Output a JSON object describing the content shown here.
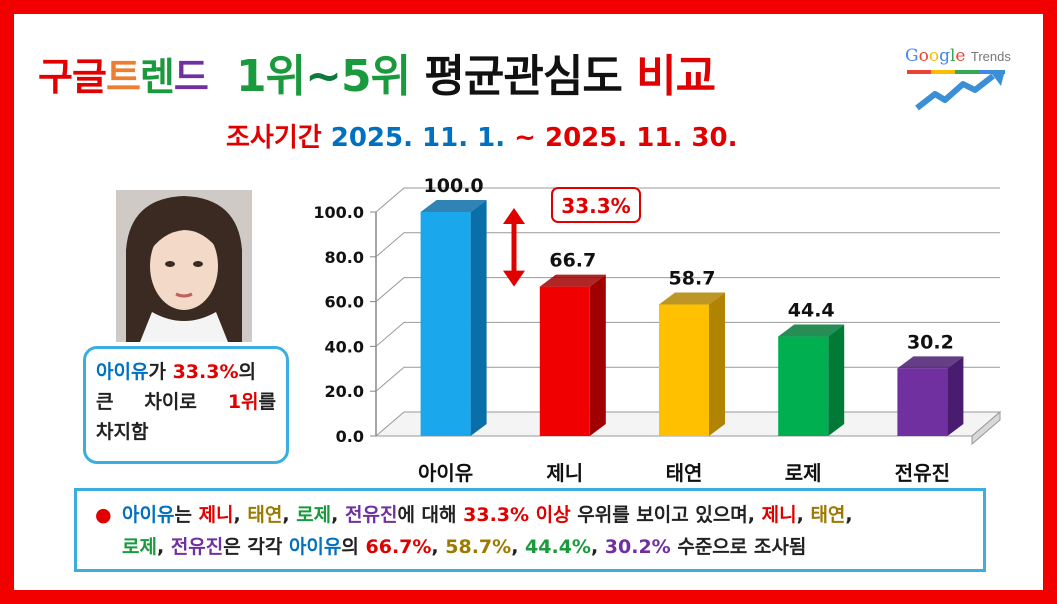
{
  "title_left": [
    "구",
    "글",
    "트",
    "렌",
    "드"
  ],
  "title_left_colors": [
    "#e00000",
    "#e00000",
    "#ed7d31",
    "#1a9a3c",
    "#7030a0"
  ],
  "title_main": {
    "a": "1위",
    "b": "~",
    "c": "5위",
    "d": " 평균관심도 ",
    "e": "비교"
  },
  "subtitle": {
    "label": "조사기간",
    "range_start": " 2025. 11. 1.",
    "range_sep": " ~ ",
    "range_end": "2025. 11. 30."
  },
  "logo": {
    "google": [
      "G",
      "o",
      "o",
      "g",
      "l",
      "e"
    ],
    "trends": "Trends"
  },
  "note": {
    "name": "아이유",
    "josa": "가 ",
    "pct": "33.3%",
    "tail": "의",
    "w1": "큰",
    "w2": "차이로",
    "rank": "1위",
    "w3": "를",
    "line3": "차지함"
  },
  "callout": "33.3%",
  "bottom": {
    "bullet": "●",
    "l1": [
      {
        "t": "아이유",
        "c": "#0070c0"
      },
      {
        "t": "는 ",
        "c": "#222"
      },
      {
        "t": "제니",
        "c": "#e00000"
      },
      {
        "t": ", ",
        "c": "#222"
      },
      {
        "t": "태연",
        "c": "#9c7a00"
      },
      {
        "t": ", ",
        "c": "#222"
      },
      {
        "t": "로제",
        "c": "#1a9a3c"
      },
      {
        "t": ", ",
        "c": "#222"
      },
      {
        "t": "전유진",
        "c": "#7030a0"
      },
      {
        "t": "에  대해 ",
        "c": "#222"
      },
      {
        "t": "33.3% 이상",
        "c": "#e00000"
      },
      {
        "t": " 우위를 보이고 있으며, ",
        "c": "#222"
      },
      {
        "t": "제니",
        "c": "#e00000"
      },
      {
        "t": ", ",
        "c": "#222"
      },
      {
        "t": "태연",
        "c": "#9c7a00"
      },
      {
        "t": ",",
        "c": "#222"
      }
    ],
    "l2": [
      {
        "t": "로제",
        "c": "#1a9a3c"
      },
      {
        "t": ", ",
        "c": "#222"
      },
      {
        "t": "전유진",
        "c": "#7030a0"
      },
      {
        "t": "은 각각 ",
        "c": "#222"
      },
      {
        "t": "아이유",
        "c": "#0070c0"
      },
      {
        "t": "의 ",
        "c": "#222"
      },
      {
        "t": "66.7%",
        "c": "#e00000"
      },
      {
        "t": ", ",
        "c": "#222"
      },
      {
        "t": "58.7%",
        "c": "#9c7a00"
      },
      {
        "t": ", ",
        "c": "#222"
      },
      {
        "t": "44.4%",
        "c": "#1a9a3c"
      },
      {
        "t": ", ",
        "c": "#222"
      },
      {
        "t": "30.2%",
        "c": "#7030a0"
      },
      {
        "t": " 수준으로 조사됨",
        "c": "#222"
      }
    ]
  },
  "chart_data": {
    "type": "bar",
    "categories": [
      "아이유",
      "제니",
      "태연",
      "로제",
      "전유진"
    ],
    "values": [
      100.0,
      66.7,
      58.7,
      44.4,
      30.2
    ],
    "value_labels": [
      "100.0",
      "66.7",
      "58.7",
      "44.4",
      "30.2"
    ],
    "colors": [
      "#1aa7ec",
      "#f00000",
      "#ffc000",
      "#00b050",
      "#7030a0"
    ],
    "side_colors": [
      "#0a6fa8",
      "#a00000",
      "#b08400",
      "#007a36",
      "#4a1c70"
    ],
    "ylim": [
      0,
      100
    ],
    "yticks": [
      "0.0",
      "20.0",
      "40.0",
      "60.0",
      "80.0",
      "100.0"
    ],
    "grid": true,
    "three_d": true
  }
}
